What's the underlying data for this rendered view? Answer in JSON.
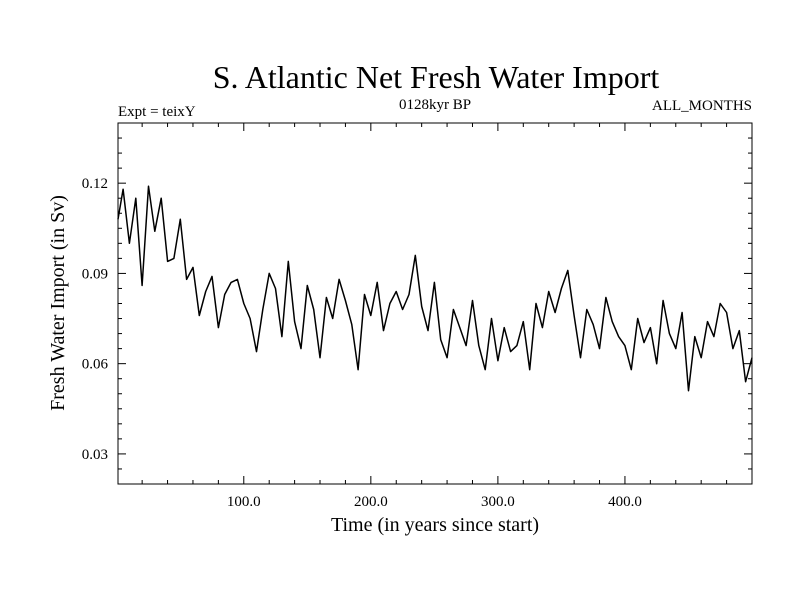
{
  "chart_data": {
    "type": "line",
    "title": "S. Atlantic Net Fresh Water Import",
    "subtitle_left": "Expt = teixY",
    "subtitle_center": "0128kyr BP",
    "subtitle_right": "ALL_MONTHS",
    "xlabel": "Time (in years since start)",
    "ylabel": "Fresh Water Import (in Sv)",
    "xlim": [
      1,
      500
    ],
    "ylim": [
      0.02,
      0.14
    ],
    "xticks": [
      100,
      200,
      300,
      400
    ],
    "xtick_labels": [
      "100.0",
      "200.0",
      "300.0",
      "400.0"
    ],
    "yticks": [
      0.03,
      0.06,
      0.09,
      0.12
    ],
    "ytick_labels": [
      "0.03",
      "0.06",
      "0.09",
      "0.12"
    ],
    "grid": false,
    "series": [
      {
        "name": "Net Fresh Water Import",
        "color": "#000000",
        "x": [
          1,
          5,
          10,
          15,
          20,
          25,
          30,
          35,
          40,
          45,
          50,
          55,
          60,
          65,
          70,
          75,
          80,
          85,
          90,
          95,
          100,
          105,
          110,
          115,
          120,
          125,
          130,
          135,
          140,
          145,
          150,
          155,
          160,
          165,
          170,
          175,
          180,
          185,
          190,
          195,
          200,
          205,
          210,
          215,
          220,
          225,
          230,
          235,
          240,
          245,
          250,
          255,
          260,
          265,
          270,
          275,
          280,
          285,
          290,
          295,
          300,
          305,
          310,
          315,
          320,
          325,
          330,
          335,
          340,
          345,
          350,
          355,
          360,
          365,
          370,
          375,
          380,
          385,
          390,
          395,
          400,
          405,
          410,
          415,
          420,
          425,
          430,
          435,
          440,
          445,
          450,
          455,
          460,
          465,
          470,
          475,
          480,
          485,
          490,
          495,
          500
        ],
        "values": [
          0.108,
          0.118,
          0.1,
          0.115,
          0.086,
          0.119,
          0.104,
          0.115,
          0.094,
          0.095,
          0.108,
          0.088,
          0.092,
          0.076,
          0.084,
          0.089,
          0.072,
          0.083,
          0.087,
          0.088,
          0.08,
          0.075,
          0.064,
          0.078,
          0.09,
          0.085,
          0.069,
          0.094,
          0.074,
          0.065,
          0.086,
          0.078,
          0.062,
          0.082,
          0.075,
          0.088,
          0.081,
          0.073,
          0.058,
          0.083,
          0.076,
          0.087,
          0.071,
          0.08,
          0.084,
          0.078,
          0.083,
          0.096,
          0.079,
          0.071,
          0.087,
          0.068,
          0.062,
          0.078,
          0.072,
          0.066,
          0.081,
          0.066,
          0.058,
          0.075,
          0.061,
          0.072,
          0.064,
          0.066,
          0.074,
          0.058,
          0.08,
          0.072,
          0.084,
          0.077,
          0.085,
          0.091,
          0.076,
          0.062,
          0.078,
          0.073,
          0.065,
          0.082,
          0.074,
          0.069,
          0.066,
          0.058,
          0.075,
          0.067,
          0.072,
          0.06,
          0.081,
          0.07,
          0.065,
          0.077,
          0.051,
          0.069,
          0.062,
          0.074,
          0.069,
          0.08,
          0.077,
          0.065,
          0.071,
          0.054,
          0.062
        ]
      }
    ]
  }
}
